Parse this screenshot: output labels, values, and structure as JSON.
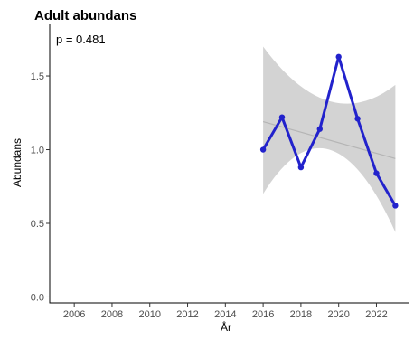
{
  "chart_data": {
    "type": "line",
    "title": "Adult abundans",
    "xlabel": "År",
    "ylabel": "Abundans",
    "annotation": "p = 0.481",
    "x_ticks": [
      2006,
      2008,
      2010,
      2012,
      2014,
      2016,
      2018,
      2020,
      2022
    ],
    "y_ticks": [
      0.0,
      0.5,
      1.0,
      1.5
    ],
    "xlim": [
      2004.7,
      2023.7
    ],
    "ylim": [
      -0.04,
      1.85
    ],
    "grid": false,
    "series": [
      {
        "x": [
          2016,
          2017,
          2018,
          2019,
          2020,
          2021,
          2022,
          2023
        ],
        "values": [
          1.0,
          1.22,
          0.88,
          1.14,
          1.63,
          1.21,
          0.84,
          0.62
        ]
      }
    ],
    "trend": {
      "x": [
        2016,
        2023
      ],
      "y": [
        1.19,
        0.94
      ],
      "ci_lower": [
        0.7,
        0.44
      ],
      "ci_upper": [
        1.7,
        1.44
      ],
      "ci_mid_lower": 1.0,
      "ci_mid_upper": 1.33
    },
    "colors": {
      "series": "#2222cc",
      "ci_band": "#d3d3d3",
      "trend": "#b5b5b5",
      "axis": "#000000"
    }
  }
}
